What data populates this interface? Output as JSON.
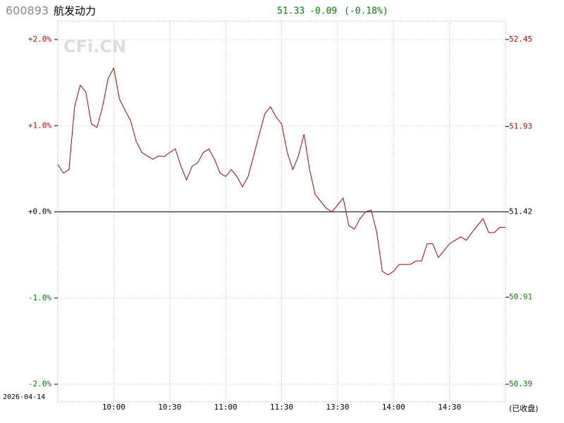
{
  "header": {
    "code": "600893",
    "name": "航发动力",
    "price": "51.33",
    "change": "-0.09",
    "change_pct": "(-0.18%)",
    "date": "2026-04-14",
    "status": "(已收盘)",
    "watermark": "CFi.CN"
  },
  "chart_data": {
    "type": "line",
    "color": "#b00000",
    "up_color": "#cc0000",
    "down_color": "#008000",
    "flat_color": "#000000",
    "xlim": [
      0,
      80
    ],
    "xticks": [
      {
        "value": 10,
        "label": "10:00"
      },
      {
        "value": 20,
        "label": "10:30"
      },
      {
        "value": 30,
        "label": "11:00"
      },
      {
        "value": 40,
        "label": "11:30"
      },
      {
        "value": 50,
        "label": "13:30"
      },
      {
        "value": 60,
        "label": "14:00"
      },
      {
        "value": 70,
        "label": "14:30"
      }
    ],
    "ylim": [
      -2,
      2
    ],
    "yticks": [
      {
        "value": 2,
        "label": "+2.0%"
      },
      {
        "value": 1,
        "label": "+1.0%"
      },
      {
        "value": 0,
        "label": "+0.0%"
      },
      {
        "value": -1,
        "label": "-1.0%"
      },
      {
        "value": -2,
        "label": "-2.0%"
      }
    ],
    "y2lim": [
      50.39,
      52.45
    ],
    "y2ticks": [
      52.45,
      51.93,
      51.42,
      50.91,
      50.39
    ],
    "grid": true,
    "values": [
      0.55,
      0.45,
      0.49,
      1.22,
      1.47,
      1.39,
      1.02,
      0.98,
      1.22,
      1.55,
      1.67,
      1.31,
      1.18,
      1.06,
      0.82,
      0.69,
      0.65,
      0.61,
      0.65,
      0.64,
      0.69,
      0.73,
      0.53,
      0.37,
      0.53,
      0.57,
      0.69,
      0.73,
      0.61,
      0.45,
      0.41,
      0.49,
      0.41,
      0.29,
      0.41,
      0.65,
      0.9,
      1.14,
      1.22,
      1.1,
      1.02,
      0.69,
      0.49,
      0.65,
      0.9,
      0.49,
      0.2,
      0.12,
      0.04,
      0.0,
      0.08,
      0.16,
      -0.16,
      -0.2,
      -0.08,
      0.0,
      0.02,
      -0.24,
      -0.69,
      -0.73,
      -0.69,
      -0.61,
      -0.61,
      -0.61,
      -0.57,
      -0.57,
      -0.37,
      -0.37,
      -0.53,
      -0.45,
      -0.37,
      -0.33,
      -0.29,
      -0.33,
      -0.24,
      -0.16,
      -0.08,
      -0.24,
      -0.24,
      -0.18,
      -0.18
    ]
  }
}
